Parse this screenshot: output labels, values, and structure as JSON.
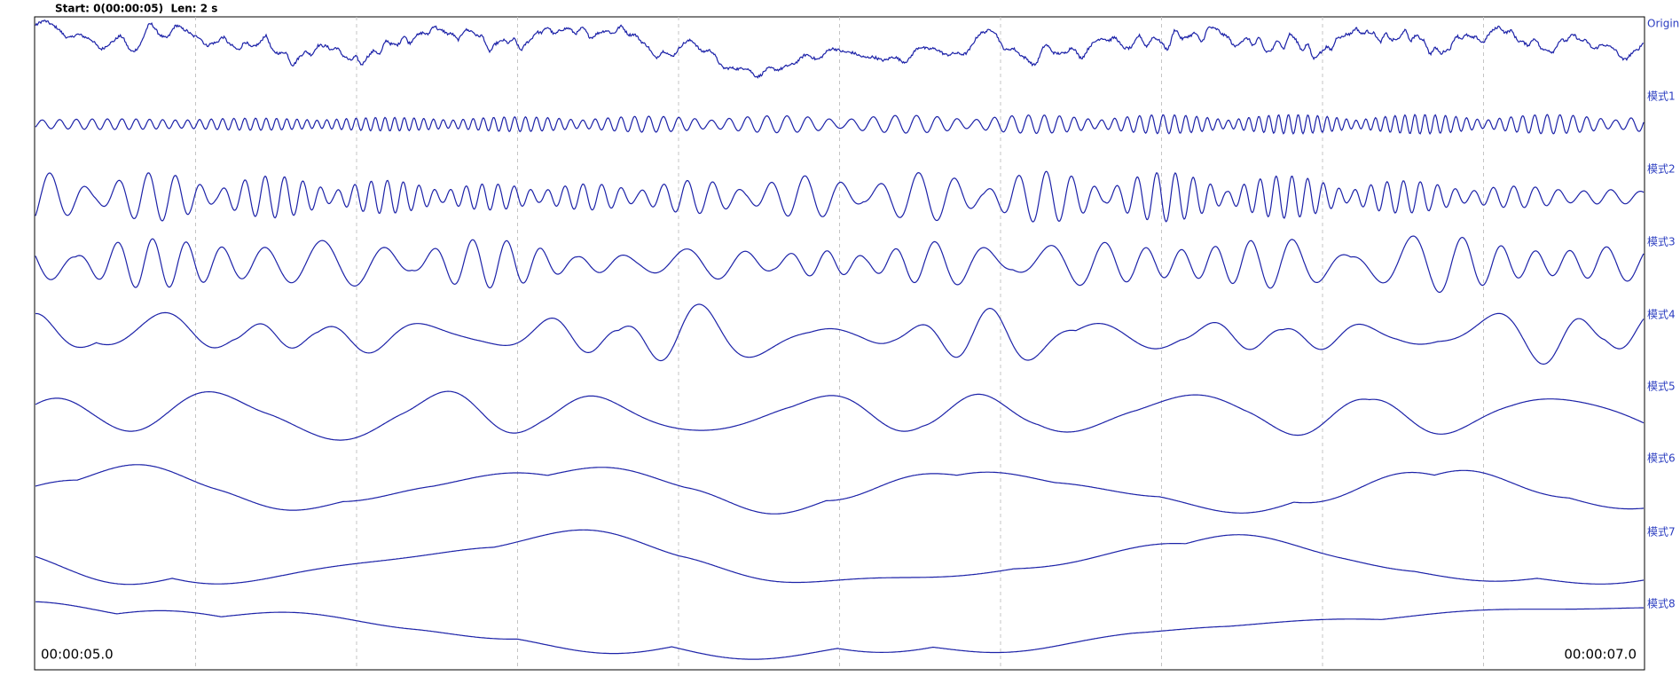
{
  "header": {
    "status": "Start: 0(00:00:05)  Len: 2 s"
  },
  "channels": [
    "Origin",
    "模式1",
    "模式2",
    "模式3",
    "模式4",
    "模式5",
    "模式6",
    "模式7",
    "模式8"
  ],
  "time_axis": {
    "start": "00:00:05.0",
    "end": "00:00:07.0"
  }
}
